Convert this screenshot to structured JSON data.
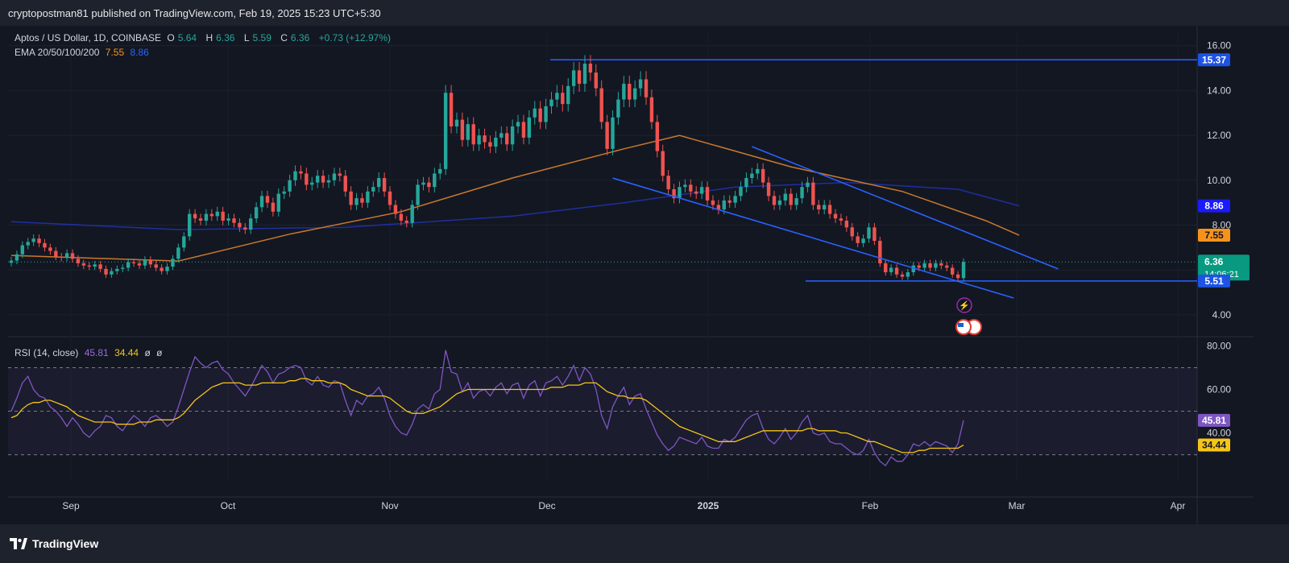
{
  "header": {
    "publisher_line": "cryptopostman81 published on TradingView.com, Feb 19, 2025 15:23 UTC+5:30"
  },
  "legend": {
    "symbol": "Aptos / US Dollar, 1D, COINBASE",
    "o_label": "O",
    "o_value": "5.64",
    "h_label": "H",
    "h_value": "6.36",
    "l_label": "L",
    "l_value": "5.59",
    "c_label": "C",
    "c_value": "6.36",
    "change": "+0.73 (+12.97%)",
    "ema_label": "EMA 20/50/100/200",
    "ema_value_1": "7.55",
    "ema_value_2": "8.86"
  },
  "rsi_legend": {
    "label": "RSI (14, close)",
    "value": "45.81",
    "ma_value": "34.44",
    "extra1": "ø",
    "extra2": "ø"
  },
  "footer": {
    "brand": "TradingView"
  },
  "colors": {
    "up": "#26a69a",
    "down": "#ef5350",
    "ema_orange": "#c97a2c",
    "ema_blue": "#1f2fa0",
    "trendline": "#2962ff",
    "rsi": "#7e57c2",
    "rsi_ma": "#f5c518",
    "last_price_label": "#089981"
  },
  "chart_data": [
    {
      "type": "candlestick",
      "title": "Aptos / US Dollar, 1D, COINBASE",
      "y_ticks": [
        "4.00",
        "6.00",
        "8.00",
        "10.00",
        "12.00",
        "14.00",
        "16.00"
      ],
      "x_ticks": [
        "Sep",
        "Oct",
        "Nov",
        "Dec",
        "2025",
        "Feb",
        "Mar",
        "Apr"
      ],
      "ylim": [
        3.1,
        16.6
      ],
      "price_labels": {
        "resistance": "15.37",
        "ema_200": "8.86",
        "ema_100": "7.55",
        "last_price": "6.36",
        "countdown": "14:06:21",
        "support": "5.51"
      },
      "horizontal_lines": [
        15.37,
        5.51
      ],
      "close_series": [
        6.42,
        6.7,
        7.1,
        7.25,
        7.4,
        7.2,
        7.0,
        6.85,
        6.6,
        6.55,
        6.75,
        6.5,
        6.3,
        6.2,
        6.15,
        6.25,
        6.05,
        5.8,
        5.95,
        6.05,
        6.1,
        6.35,
        6.3,
        6.2,
        6.45,
        6.25,
        6.1,
        5.95,
        6.15,
        6.5,
        7.0,
        7.5,
        8.5,
        8.3,
        8.2,
        8.5,
        8.4,
        8.6,
        8.2,
        8.3,
        8.1,
        7.9,
        7.8,
        8.3,
        8.8,
        9.3,
        9.0,
        8.6,
        9.4,
        9.5,
        10.0,
        10.4,
        10.3,
        9.8,
        9.9,
        10.2,
        9.9,
        10.0,
        10.3,
        10.2,
        9.5,
        8.9,
        9.2,
        9.0,
        9.5,
        9.7,
        10.1,
        9.5,
        8.9,
        8.5,
        8.2,
        8.1,
        8.9,
        9.8,
        9.9,
        9.7,
        10.3,
        10.5,
        13.9,
        12.4,
        12.7,
        11.8,
        12.5,
        11.6,
        12.0,
        11.7,
        11.5,
        11.9,
        12.1,
        11.6,
        12.4,
        12.6,
        11.9,
        12.8,
        13.2,
        12.6,
        13.3,
        13.6,
        13.9,
        13.4,
        14.2,
        14.9,
        14.3,
        15.2,
        14.8,
        14.1,
        12.6,
        11.4,
        12.8,
        13.6,
        14.3,
        13.6,
        14.1,
        14.5,
        13.7,
        12.6,
        11.3,
        10.2,
        9.6,
        9.2,
        9.7,
        9.8,
        9.5,
        9.4,
        9.7,
        9.1,
        8.9,
        8.7,
        9.1,
        9.0,
        9.3,
        9.7,
        10.1,
        10.3,
        10.5,
        9.9,
        9.3,
        8.9,
        9.1,
        9.4,
        8.9,
        9.2,
        9.7,
        9.9,
        8.9,
        8.7,
        8.9,
        8.5,
        8.3,
        8.2,
        7.9,
        7.5,
        7.2,
        7.4,
        7.9,
        7.3,
        6.3,
        5.9,
        6.1,
        5.8,
        5.7,
        5.9,
        6.2,
        6.1,
        6.3,
        6.1,
        6.3,
        6.2,
        6.1,
        5.8,
        5.64,
        6.36
      ],
      "ema_200_series_points": [
        [
          0,
          8.15
        ],
        [
          30,
          7.8
        ],
        [
          60,
          7.9
        ],
        [
          90,
          8.4
        ],
        [
          110,
          9.0
        ],
        [
          130,
          9.7
        ],
        [
          150,
          9.9
        ],
        [
          170,
          9.6
        ],
        [
          181,
          8.86
        ]
      ],
      "ema_100_series_points": [
        [
          0,
          6.65
        ],
        [
          30,
          6.4
        ],
        [
          50,
          7.6
        ],
        [
          70,
          8.6
        ],
        [
          90,
          10.1
        ],
        [
          110,
          11.4
        ],
        [
          120,
          12.0
        ],
        [
          140,
          10.6
        ],
        [
          160,
          9.5
        ],
        [
          175,
          8.2
        ],
        [
          181,
          7.55
        ]
      ],
      "trendlines": [
        {
          "from": [
            108,
            10.1
          ],
          "to": [
            180,
            4.75
          ]
        },
        {
          "from": [
            133,
            11.5
          ],
          "to": [
            188,
            6.05
          ]
        }
      ]
    },
    {
      "type": "line",
      "title": "RSI (14, close)",
      "y_ticks": [
        "40.00",
        "60.00",
        "80.00"
      ],
      "ylim": [
        18,
        82
      ],
      "levels": [
        70,
        50,
        30
      ],
      "price_labels": {
        "rsi": "45.81",
        "rsi_ma": "34.44"
      },
      "series": [
        {
          "name": "RSI",
          "values": [
            50,
            56,
            63,
            66,
            60,
            57,
            56,
            52,
            50,
            47,
            43,
            47,
            44,
            40,
            38,
            41,
            43,
            48,
            47,
            43,
            41,
            45,
            48,
            46,
            43,
            47,
            48,
            46,
            43,
            45,
            52,
            60,
            68,
            75,
            72,
            70,
            72,
            73,
            69,
            67,
            63,
            60,
            57,
            61,
            66,
            71,
            68,
            63,
            67,
            68,
            70,
            71,
            70,
            64,
            62,
            66,
            62,
            61,
            64,
            63,
            55,
            48,
            55,
            53,
            57,
            58,
            61,
            56,
            48,
            43,
            40,
            39,
            44,
            51,
            53,
            51,
            58,
            60,
            78,
            68,
            67,
            59,
            63,
            56,
            59,
            60,
            57,
            61,
            63,
            58,
            62,
            63,
            56,
            62,
            64,
            57,
            63,
            64,
            66,
            62,
            66,
            71,
            64,
            70,
            67,
            60,
            48,
            42,
            52,
            57,
            61,
            53,
            57,
            58,
            51,
            45,
            39,
            35,
            32,
            34,
            38,
            37,
            36,
            35,
            38,
            34,
            33,
            33,
            37,
            36,
            38,
            42,
            46,
            48,
            49,
            42,
            37,
            35,
            38,
            42,
            37,
            40,
            45,
            48,
            40,
            39,
            40,
            36,
            35,
            35,
            33,
            31,
            30,
            32,
            37,
            31,
            27,
            25,
            29,
            27,
            27,
            30,
            35,
            34,
            36,
            34,
            36,
            35,
            34,
            31,
            35,
            45.81
          ]
        },
        {
          "name": "RSI MA",
          "values": [
            47,
            48,
            51,
            53,
            54,
            54,
            55,
            55,
            54,
            53,
            52,
            50,
            48,
            47,
            46,
            45,
            45,
            45,
            45,
            44,
            44,
            44,
            44,
            45,
            45,
            45,
            46,
            46,
            46,
            46,
            47,
            49,
            52,
            55,
            57,
            59,
            61,
            62,
            63,
            63,
            63,
            63,
            62,
            62,
            62,
            63,
            63,
            63,
            63,
            63,
            64,
            64,
            65,
            65,
            64,
            64,
            64,
            63,
            63,
            63,
            62,
            60,
            59,
            58,
            57,
            57,
            57,
            57,
            56,
            54,
            52,
            50,
            49,
            49,
            49,
            50,
            51,
            52,
            54,
            56,
            58,
            59,
            60,
            60,
            60,
            60,
            60,
            60,
            60,
            60,
            60,
            60,
            60,
            60,
            60,
            60,
            60,
            61,
            61,
            61,
            62,
            62,
            62,
            63,
            63,
            63,
            61,
            59,
            58,
            57,
            57,
            56,
            56,
            56,
            55,
            53,
            51,
            49,
            47,
            45,
            43,
            42,
            41,
            40,
            39,
            38,
            37,
            36,
            36,
            36,
            36,
            37,
            38,
            39,
            40,
            41,
            41,
            41,
            41,
            41,
            41,
            41,
            41,
            42,
            42,
            41,
            41,
            41,
            41,
            40,
            40,
            39,
            38,
            37,
            36,
            36,
            35,
            34,
            33,
            32,
            31,
            31,
            31,
            32,
            32,
            33,
            33,
            33,
            33,
            33,
            33,
            34.44
          ]
        }
      ]
    }
  ]
}
